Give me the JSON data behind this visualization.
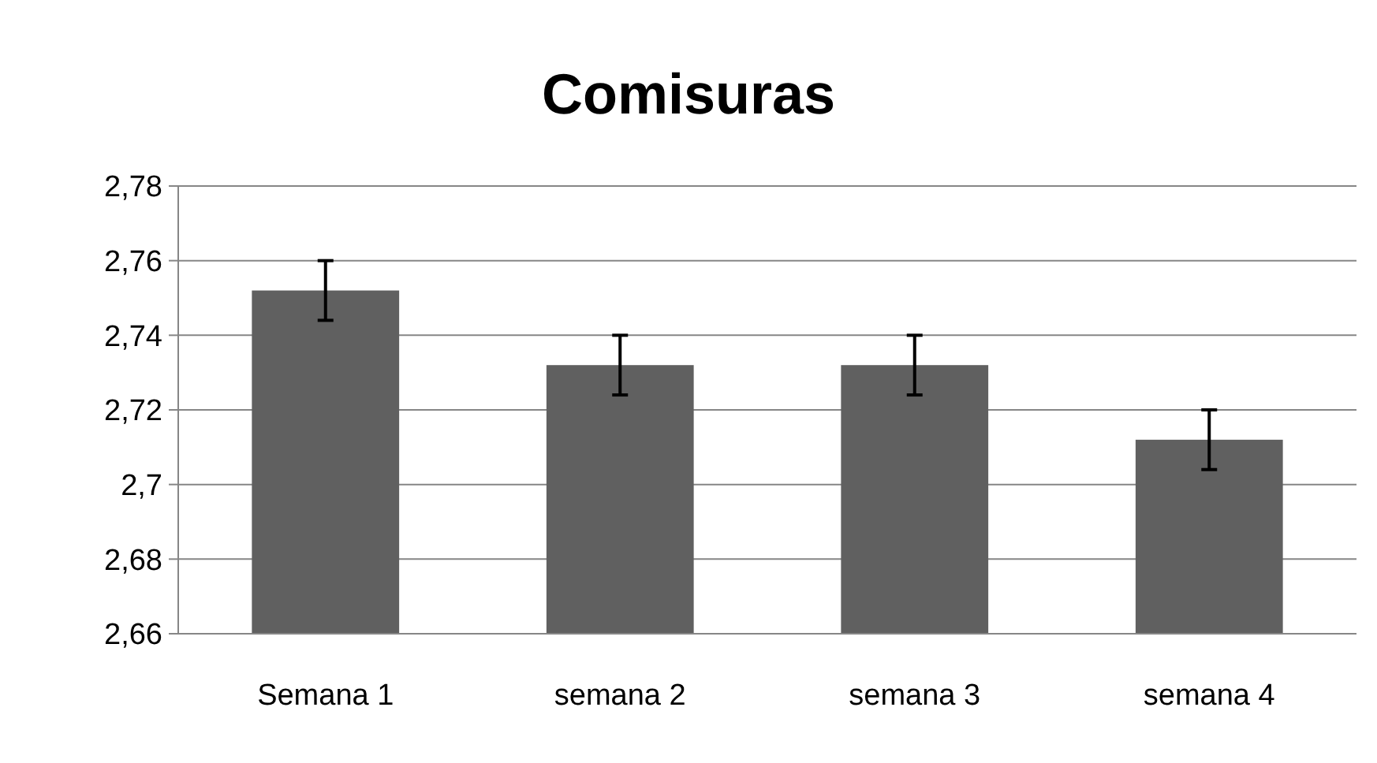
{
  "chart_data": {
    "type": "bar",
    "title": "Comisuras",
    "categories": [
      "Semana 1",
      "semana 2",
      "semana 3",
      "semana 4"
    ],
    "values": [
      2.752,
      2.732,
      2.732,
      2.712
    ],
    "errors": [
      0.008,
      0.008,
      0.008,
      0.008
    ],
    "color": "#606060",
    "ylim": [
      2.66,
      2.78
    ],
    "yticks": [
      {
        "value": 2.66,
        "label": "2,66"
      },
      {
        "value": 2.68,
        "label": "2,68"
      },
      {
        "value": 2.7,
        "label": "2,7"
      },
      {
        "value": 2.72,
        "label": "2,72"
      },
      {
        "value": 2.74,
        "label": "2,74"
      },
      {
        "value": 2.76,
        "label": "2,76"
      },
      {
        "value": 2.78,
        "label": "2,78"
      }
    ],
    "grid": "y"
  }
}
